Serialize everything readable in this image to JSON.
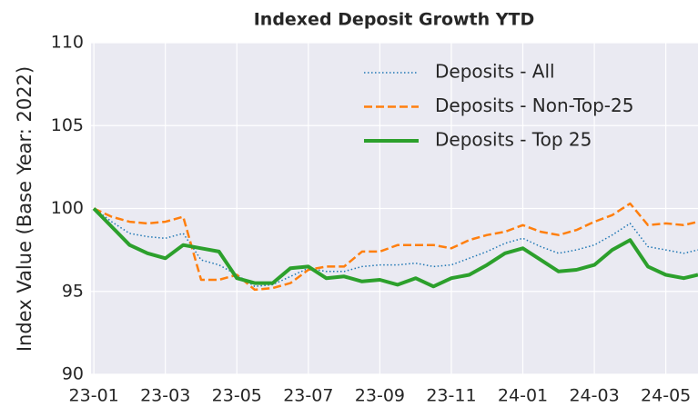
{
  "chart_data": {
    "type": "line",
    "title": "Indexed Deposit Growth YTD",
    "y_label": "Index Value (Base Year: 2022)",
    "x": [
      0,
      0.5,
      1,
      1.5,
      2,
      2.5,
      3,
      3.5,
      4,
      4.5,
      5,
      5.5,
      6,
      6.5,
      7,
      7.5,
      8,
      8.5,
      9,
      9.5,
      10,
      10.5,
      11,
      11.5,
      12,
      12.5,
      13,
      13.5,
      14,
      14.5,
      15,
      15.5,
      16,
      16.5,
      16.9
    ],
    "series": [
      {
        "name": "Deposits - All",
        "color": "#1f77b4",
        "linestyle": "dotted",
        "width": 1.5,
        "values": [
          100,
          99.2,
          98.5,
          98.3,
          98.2,
          98.5,
          96.9,
          96.6,
          96.0,
          95.3,
          95.4,
          95.9,
          96.4,
          96.2,
          96.2,
          96.5,
          96.6,
          96.6,
          96.7,
          96.5,
          96.6,
          97.0,
          97.4,
          97.9,
          98.2,
          97.7,
          97.3,
          97.5,
          97.8,
          98.4,
          99.1,
          97.7,
          97.5,
          97.3,
          97.5
        ]
      },
      {
        "name": "Deposits - Non-Top-25",
        "color": "#ff7f0e",
        "linestyle": "dashed",
        "width": 2.5,
        "values": [
          100,
          99.5,
          99.2,
          99.1,
          99.2,
          99.5,
          95.7,
          95.7,
          96.0,
          95.1,
          95.2,
          95.5,
          96.3,
          96.5,
          96.5,
          97.4,
          97.4,
          97.8,
          97.8,
          97.8,
          97.6,
          98.1,
          98.4,
          98.6,
          99.0,
          98.6,
          98.4,
          98.7,
          99.2,
          99.6,
          100.3,
          99.0,
          99.1,
          99.0,
          99.2
        ]
      },
      {
        "name": "Deposits - Top 25",
        "color": "#2ca02c",
        "linestyle": "solid",
        "width": 4,
        "values": [
          100,
          98.9,
          97.8,
          97.3,
          97.0,
          97.8,
          97.6,
          97.4,
          95.8,
          95.5,
          95.5,
          96.4,
          96.5,
          95.8,
          95.9,
          95.6,
          95.7,
          95.4,
          95.8,
          95.3,
          95.8,
          96.0,
          96.6,
          97.3,
          97.6,
          96.9,
          96.2,
          96.3,
          96.6,
          97.5,
          98.1,
          96.5,
          96.0,
          95.8,
          96.0
        ]
      }
    ],
    "xlim": [
      -0.08,
      16.9
    ],
    "xticks": [
      {
        "value": 0,
        "label": "23-01"
      },
      {
        "value": 2,
        "label": "23-03"
      },
      {
        "value": 4,
        "label": "23-05"
      },
      {
        "value": 6,
        "label": "23-07"
      },
      {
        "value": 8,
        "label": "23-09"
      },
      {
        "value": 10,
        "label": "23-11"
      },
      {
        "value": 12,
        "label": "24-01"
      },
      {
        "value": 14,
        "label": "24-03"
      },
      {
        "value": 16,
        "label": "24-05"
      }
    ],
    "ylim": [
      90,
      110
    ],
    "yticks": [
      90,
      95,
      100,
      105,
      110
    ],
    "grid": true,
    "legend": "upper right"
  }
}
